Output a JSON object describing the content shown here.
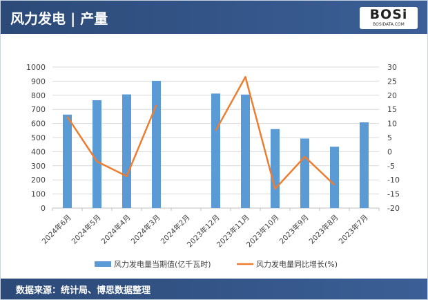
{
  "header": {
    "title": "风力发电 | 产量",
    "logo_text": "BOSi",
    "logo_sub": "BOSIDATA.COM"
  },
  "footer": {
    "source": "数据来源：统计局、博思数据整理"
  },
  "colors": {
    "bar": "#5b9bd5",
    "line": "#ed7d31",
    "header": "#2c4a78"
  },
  "chart_data": {
    "type": "bar+line",
    "categories": [
      "2024年6月",
      "2024年5月",
      "2024年4月",
      "2024年3月",
      "2024年2月",
      "2023年12月",
      "2023年11月",
      "2023年10月",
      "2023年9月",
      "2023年8月",
      "2023年7月"
    ],
    "series": [
      {
        "name": "风力发电量当期值(亿千瓦时)",
        "type": "bar",
        "axis": "left",
        "values": [
          663,
          765,
          806,
          902,
          null,
          812,
          805,
          560,
          493,
          435,
          608
        ]
      },
      {
        "name": "风力发电量同比增长(%)",
        "type": "line",
        "axis": "right",
        "values": [
          12.4,
          -3.5,
          -8.7,
          16.6,
          null,
          7.5,
          26.5,
          -13.2,
          -1.8,
          -11.8,
          null
        ]
      }
    ],
    "left_axis": {
      "ylim": [
        0,
        1000
      ],
      "ticks": [
        0,
        100,
        200,
        300,
        400,
        500,
        600,
        700,
        800,
        900,
        1000
      ]
    },
    "right_axis": {
      "ylim": [
        -20,
        30
      ],
      "ticks": [
        -20,
        -15,
        -10,
        -5,
        0,
        5,
        10,
        15,
        20,
        25,
        30
      ]
    },
    "grid": true,
    "legend": "bottom"
  }
}
